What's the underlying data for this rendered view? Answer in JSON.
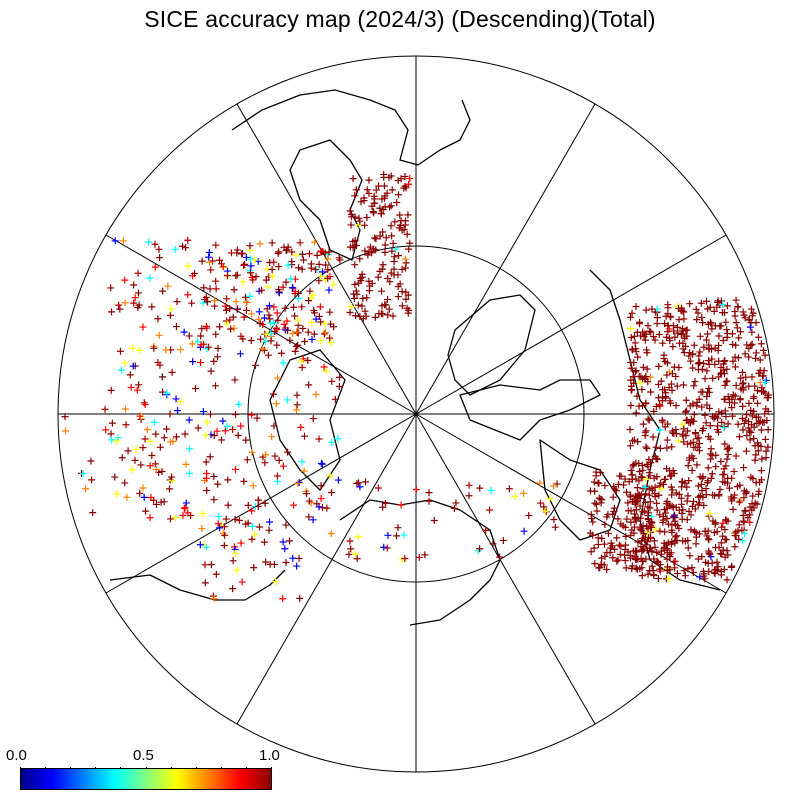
{
  "title": "SICE accuracy map (2024/3) (Descending)(Total)",
  "colorbar": {
    "labels": [
      "0.0",
      "0.5",
      "1.0"
    ],
    "min": 0.0,
    "max": 1.0,
    "colors": [
      "#00008b",
      "#0000ff",
      "#0080ff",
      "#00ffff",
      "#80ff80",
      "#ffff00",
      "#ff8000",
      "#ff0000",
      "#8b0000"
    ]
  },
  "map": {
    "projection": "north-polar-stereographic",
    "meridian_spacing_deg": 30,
    "inner_circle": true,
    "marker": "+",
    "dominant_marker_color": "#8b0000",
    "coastline_color": "#000000"
  }
}
